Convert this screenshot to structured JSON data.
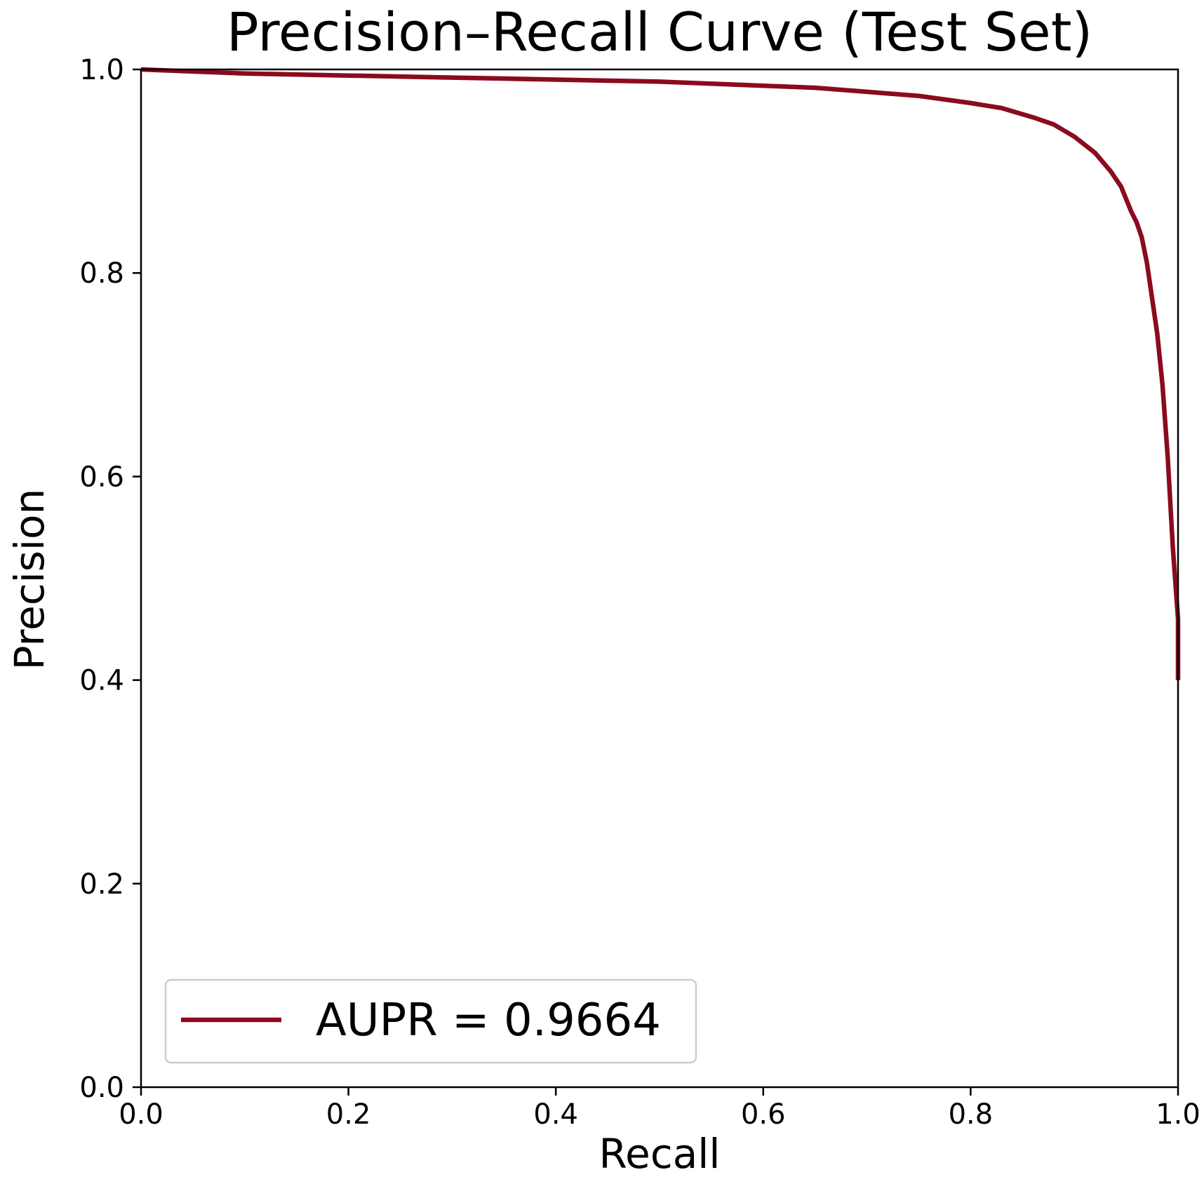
{
  "chart_data": {
    "type": "line",
    "title": "Precision–Recall Curve (Test Set)",
    "xlabel": "Recall",
    "ylabel": "Precision",
    "xlim": [
      0.0,
      1.0
    ],
    "ylim": [
      0.0,
      1.0
    ],
    "xticks": [
      "0.0",
      "0.2",
      "0.4",
      "0.6",
      "0.8",
      "1.0"
    ],
    "yticks": [
      "0.0",
      "0.2",
      "0.4",
      "0.6",
      "0.8",
      "1.0"
    ],
    "grid": false,
    "legend_position": "lower-left",
    "series": [
      {
        "name": "AUPR = 0.9664",
        "color": "#8b0a1e",
        "x": [
          0.0,
          0.05,
          0.1,
          0.15,
          0.2,
          0.25,
          0.3,
          0.35,
          0.4,
          0.45,
          0.5,
          0.55,
          0.6,
          0.65,
          0.7,
          0.75,
          0.8,
          0.83,
          0.86,
          0.88,
          0.9,
          0.92,
          0.935,
          0.945,
          0.955,
          0.96,
          0.965,
          0.97,
          0.975,
          0.98,
          0.985,
          0.99,
          0.995,
          1.0,
          1.0
        ],
        "y": [
          1.0,
          0.998,
          0.996,
          0.995,
          0.994,
          0.993,
          0.992,
          0.991,
          0.99,
          0.989,
          0.988,
          0.986,
          0.984,
          0.982,
          0.978,
          0.974,
          0.967,
          0.962,
          0.953,
          0.946,
          0.934,
          0.918,
          0.9,
          0.885,
          0.86,
          0.85,
          0.835,
          0.81,
          0.775,
          0.74,
          0.69,
          0.62,
          0.53,
          0.46,
          0.4
        ]
      }
    ]
  },
  "legend": {
    "entry": "AUPR = 0.9664"
  }
}
